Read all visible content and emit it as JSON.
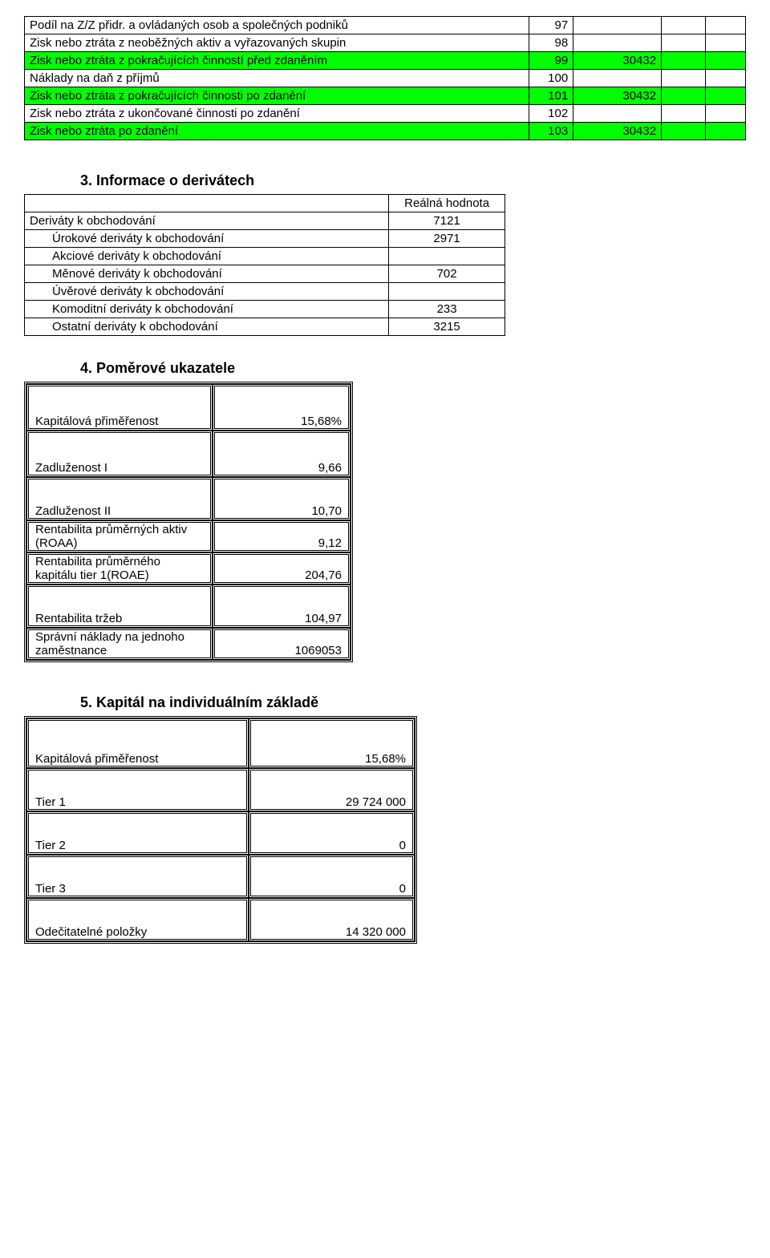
{
  "table1": {
    "rows": [
      {
        "label": "Podíl na Z/Z přidr. a ovládaných osob a společných podniků",
        "code": "97",
        "v1": "",
        "hl": false
      },
      {
        "label": "Zisk nebo ztráta z neoběžných aktiv a vyřazovaných skupin",
        "code": "98",
        "v1": "",
        "hl": false
      },
      {
        "label": "Zisk nebo ztráta z pokračujících činností před zdaněním",
        "code": "99",
        "v1": "30432",
        "hl": true
      },
      {
        "label": "Náklady na daň z příjmů",
        "code": "100",
        "v1": "",
        "hl": false
      },
      {
        "label": "Zisk nebo ztráta z pokračujících činnosti po zdanění",
        "code": "101",
        "v1": "30432",
        "hl": true
      },
      {
        "label": "Zisk nebo ztráta z ukončované činnosti po zdanění",
        "code": "102",
        "v1": "",
        "hl": false
      },
      {
        "label": "Zisk nebo ztráta po zdanění",
        "code": "103",
        "v1": "30432",
        "hl": true
      }
    ]
  },
  "section3": {
    "title": "3. Informace o derivátech",
    "header": "Reálná hodnota",
    "rows": [
      {
        "label": "Deriváty k obchodování",
        "val": "7121",
        "ind": false
      },
      {
        "label": "Úrokové deriváty  k obchodování",
        "val": "2971",
        "ind": true
      },
      {
        "label": "Akciové deriváty  k obchodování",
        "val": "",
        "ind": true
      },
      {
        "label": "Měnové deriváty  k obchodování",
        "val": "702",
        "ind": true
      },
      {
        "label": "Úvěrové deriváty  k obchodování",
        "val": "",
        "ind": true
      },
      {
        "label": "Komoditní deriváty  k obchodování",
        "val": "233",
        "ind": true
      },
      {
        "label": "Ostatní deriváty  k obchodování",
        "val": "3215",
        "ind": true
      }
    ]
  },
  "section4": {
    "title": "4. Poměrové ukazatele",
    "rows": [
      {
        "label": "Kapitálová přiměřenost",
        "val": "15,68%",
        "tall": true
      },
      {
        "label": "Zadluženost I",
        "val": "9,66",
        "tall": true
      },
      {
        "label": "Zadluženost II",
        "val": "10,70",
        "tall": true
      },
      {
        "label": "Rentabilita průměrných aktiv (ROAA)",
        "val": "9,12",
        "tall": false
      },
      {
        "label": "Rentabilita průměrného kapitálu tier 1(ROAE)",
        "val": "204,76",
        "tall": false
      },
      {
        "label": "Rentabilita tržeb",
        "val": "104,97",
        "tall": true
      },
      {
        "label": "Správní náklady na jednoho zaměstnance",
        "val": "1069053",
        "tall": false
      }
    ]
  },
  "section5": {
    "title": "5. Kapitál na individuálním základě",
    "rows": [
      {
        "label": "Kapitálová přiměřenost",
        "val": "15,68%"
      },
      {
        "label": "Tier 1",
        "val": "29 724 000"
      },
      {
        "label": "Tier 2",
        "val": "0"
      },
      {
        "label": "Tier 3",
        "val": "0"
      },
      {
        "label": "Odečitatelné položky",
        "val": "14 320 000"
      }
    ]
  }
}
